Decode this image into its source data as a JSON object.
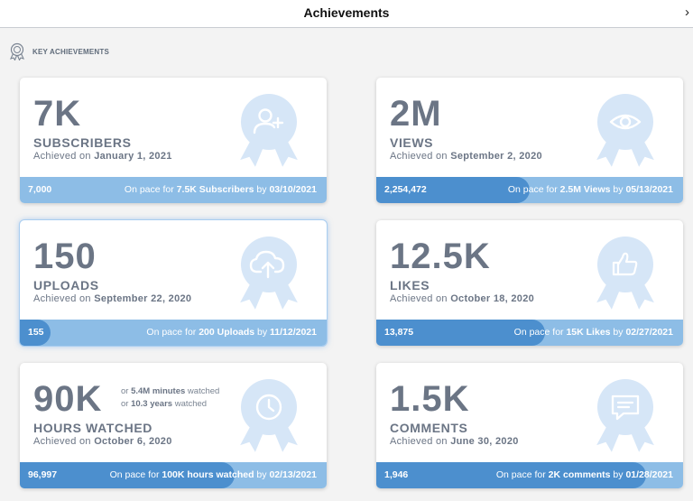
{
  "window": {
    "title": "Achievements",
    "close_glyph": "›"
  },
  "section": {
    "label": "KEY ACHIEVEMENTS",
    "icon": "award-icon"
  },
  "colors": {
    "bar_light": "#8dbde6",
    "bar_fill": "#4c8fce",
    "badge": "#d6e6f7",
    "text": "#6b7585"
  },
  "cards": [
    {
      "id": "subscribers",
      "big": "7K",
      "metric": "SUBSCRIBERS",
      "achieved_prefix": "Achieved on",
      "achieved_date": "January 1, 2021",
      "current": "7,000",
      "progress": 0.0,
      "pace_prefix": "On pace for",
      "pace_target": "7.5K Subscribers",
      "pace_by": "by",
      "pace_date": "03/10/2021",
      "icon": "add-user-icon"
    },
    {
      "id": "views",
      "big": "2M",
      "metric": "VIEWS",
      "achieved_prefix": "Achieved on",
      "achieved_date": "September 2, 2020",
      "current": "2,254,472",
      "progress": 0.5,
      "pace_prefix": "On pace for",
      "pace_target": "2.5M Views",
      "pace_by": "by",
      "pace_date": "05/13/2021",
      "icon": "eye-icon"
    },
    {
      "id": "uploads",
      "big": "150",
      "metric": "UPLOADS",
      "achieved_prefix": "Achieved on",
      "achieved_date": "September 22, 2020",
      "current": "155",
      "progress": 0.1,
      "pace_prefix": "On pace for",
      "pace_target": "200 Uploads",
      "pace_by": "by",
      "pace_date": "11/12/2021",
      "icon": "cloud-upload-icon"
    },
    {
      "id": "likes",
      "big": "12.5K",
      "metric": "LIKES",
      "achieved_prefix": "Achieved on",
      "achieved_date": "October 18, 2020",
      "current": "13,875",
      "progress": 0.55,
      "pace_prefix": "On pace for",
      "pace_target": "15K Likes",
      "pace_by": "by",
      "pace_date": "02/27/2021",
      "icon": "thumbs-up-icon"
    },
    {
      "id": "hours",
      "big": "90K",
      "metric": "HOURS WATCHED",
      "achieved_prefix": "Achieved on",
      "achieved_date": "October 6, 2020",
      "current": "96,997",
      "progress": 0.7,
      "pace_prefix": "On pace for",
      "pace_target": "100K hours watched",
      "pace_by": "by",
      "pace_date": "02/13/2021",
      "icon": "clock-icon",
      "extra": {
        "or1": "or",
        "minutes": "5.4M minutes",
        "minutes_suffix": "watched",
        "or2": "or",
        "years": "10.3 years",
        "years_suffix": "watched"
      }
    },
    {
      "id": "comments",
      "big": "1.5K",
      "metric": "COMMENTS",
      "achieved_prefix": "Achieved on",
      "achieved_date": "June 30, 2020",
      "current": "1,946",
      "progress": 0.88,
      "pace_prefix": "On pace for",
      "pace_target": "2K comments",
      "pace_by": "by",
      "pace_date": "01/28/2021",
      "icon": "comment-icon"
    }
  ]
}
